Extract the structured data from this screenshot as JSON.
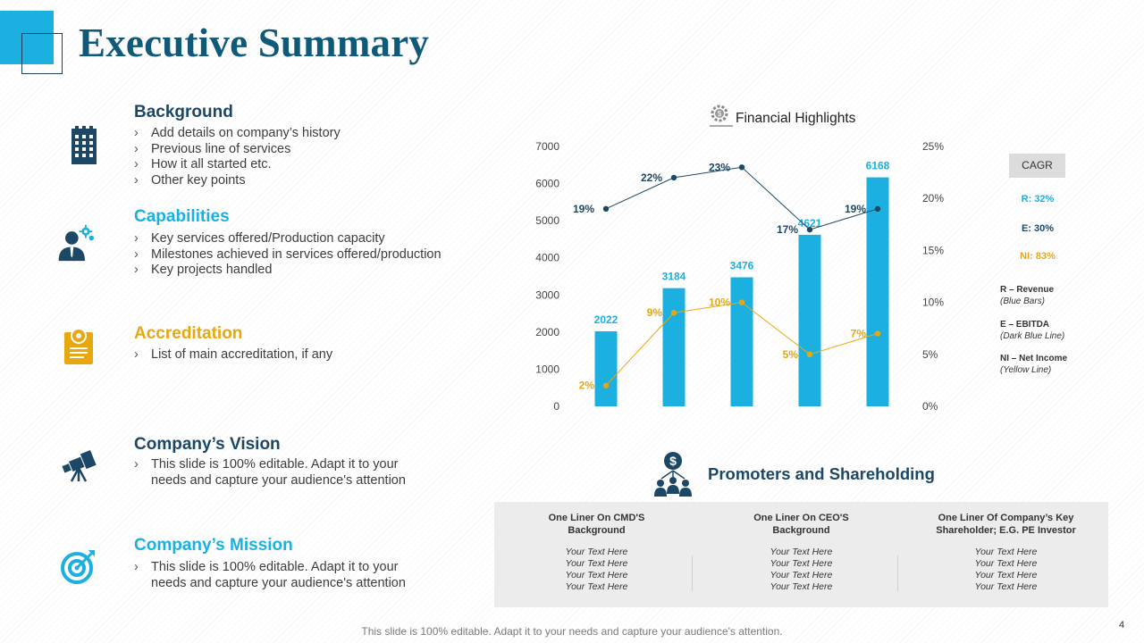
{
  "title": "Executive Summary",
  "colors": {
    "navy": "#1c4866",
    "cyan": "#1bb0e0",
    "gold": "#e8a70e",
    "dark_line": "#1c4866"
  },
  "sections": [
    {
      "title": "Background",
      "icon": "building-icon",
      "items": [
        "Add details on company’s history",
        "Previous line of services",
        "How it all started etc.",
        "Other key points"
      ]
    },
    {
      "title": "Capabilities",
      "icon": "business-person-gears-icon",
      "items": [
        "Key services offered/Production capacity",
        "Milestones achieved in services offered/production",
        "Key projects handled"
      ]
    },
    {
      "title": "Accreditation",
      "icon": "certificate-icon",
      "items": [
        "List of main accreditation, if any"
      ]
    },
    {
      "title": "Company’s Vision",
      "icon": "telescope-icon",
      "items": [
        "This slide is 100% editable. Adapt it to your needs and capture your audience's attention"
      ]
    },
    {
      "title": "Company’s Mission",
      "icon": "target-icon",
      "items": [
        "This slide is 100% editable. Adapt it to your needs and capture your audience's attention"
      ]
    }
  ],
  "financial": {
    "title": "Financial Highlights",
    "icon": "money-gear-icon",
    "cagr": {
      "label": "CAGR",
      "revenue": "R: 32%",
      "ebitda": "E: 30%",
      "net_income": "NI: 83%"
    },
    "legend": [
      {
        "label": "R – Revenue",
        "note": "(Blue Bars)"
      },
      {
        "label": "E – EBITDA",
        "note": "(Dark Blue Line)"
      },
      {
        "label": "NI – Net Income",
        "note": "(Yellow Line)"
      }
    ]
  },
  "chart_data": {
    "type": "bar",
    "title": "Financial Highlights",
    "xlabel": "",
    "ylabel": "",
    "ylim": [
      0,
      7000
    ],
    "yticks": [
      0,
      1000,
      2000,
      3000,
      4000,
      5000,
      6000,
      7000
    ],
    "y2lim": [
      0,
      25
    ],
    "y2ticks": [
      "0%",
      "5%",
      "10%",
      "15%",
      "20%",
      "25%"
    ],
    "grid": false,
    "series": [
      {
        "name": "R – Revenue",
        "kind": "bar",
        "axis": "left",
        "values": [
          2022,
          3184,
          3476,
          4621,
          6168
        ],
        "labels": [
          "2022",
          "3184",
          "3476",
          "4621",
          "6168"
        ]
      },
      {
        "name": "E – EBITDA",
        "kind": "line",
        "axis": "right",
        "values": [
          19,
          22,
          23,
          17,
          19
        ],
        "labels": [
          "19%",
          "22%",
          "23%",
          "17%",
          "19%"
        ]
      },
      {
        "name": "NI – Net Income",
        "kind": "line",
        "axis": "right",
        "values": [
          2,
          9,
          10,
          5,
          7
        ],
        "labels": [
          "2%",
          "9%",
          "10%",
          "5%",
          "7%"
        ]
      }
    ]
  },
  "promoters": {
    "title": "Promoters and Shareholding",
    "icon": "shareholders-dollar-icon",
    "columns": [
      {
        "heading": "One Liner On CMD'S Background",
        "lines": [
          "Your Text Here",
          "Your Text Here",
          "Your Text Here",
          "Your Text Here"
        ]
      },
      {
        "heading": "One Liner On CEO'S Background",
        "lines": [
          "Your Text Here",
          "Your Text Here",
          "Your Text Here",
          "Your Text Here"
        ]
      },
      {
        "heading": "One Liner Of Company’s Key Shareholder; E.G.  PE Investor",
        "lines": [
          "Your Text Here",
          "Your Text Here",
          "Your Text Here",
          "Your Text Here"
        ]
      }
    ]
  },
  "footer": "This slide is 100% editable. Adapt it to your needs and capture your audience's attention.",
  "page_number": "4"
}
